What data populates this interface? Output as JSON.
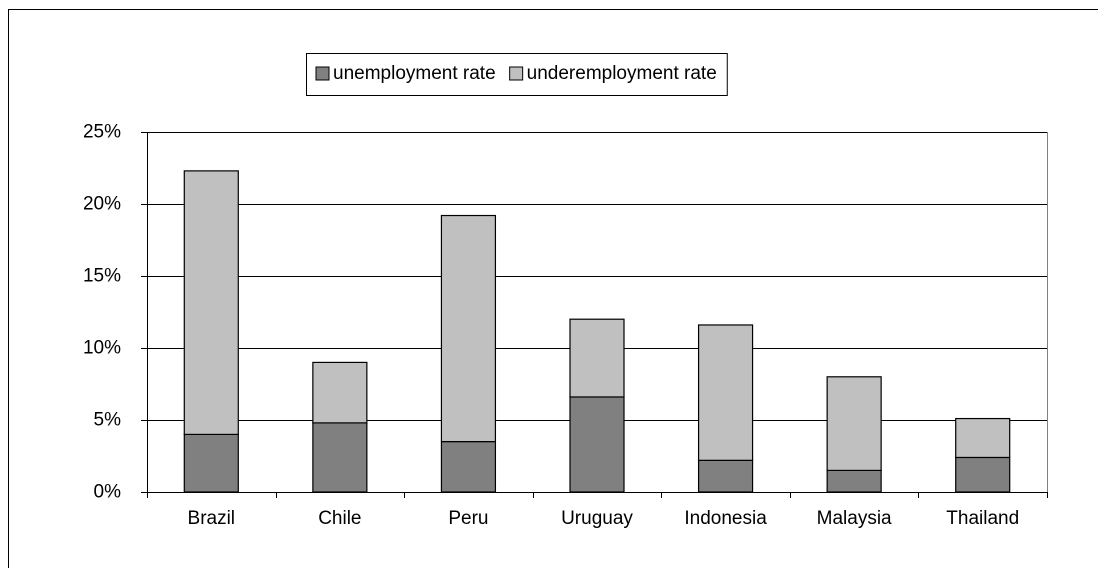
{
  "chart_data": {
    "type": "stacked-bar",
    "categories": [
      "Brazil",
      "Chile",
      "Peru",
      "Uruguay",
      "Indonesia",
      "Malaysia",
      "Thailand"
    ],
    "series": [
      {
        "name": "unemployment rate",
        "color": "#808080",
        "values": [
          4.0,
          4.8,
          3.5,
          6.6,
          2.2,
          1.5,
          2.4
        ]
      },
      {
        "name": "underemployment rate",
        "color": "#c0c0c0",
        "values": [
          18.3,
          4.2,
          15.7,
          5.4,
          9.4,
          6.5,
          2.7
        ]
      }
    ],
    "ylim": [
      0,
      25
    ],
    "yticks": [
      {
        "value": 0,
        "label": "0%"
      },
      {
        "value": 5,
        "label": "5%"
      },
      {
        "value": 10,
        "label": "10%"
      },
      {
        "value": 15,
        "label": "15%"
      },
      {
        "value": 20,
        "label": "20%"
      },
      {
        "value": 25,
        "label": "25%"
      }
    ],
    "grid": true,
    "legend": "top"
  }
}
